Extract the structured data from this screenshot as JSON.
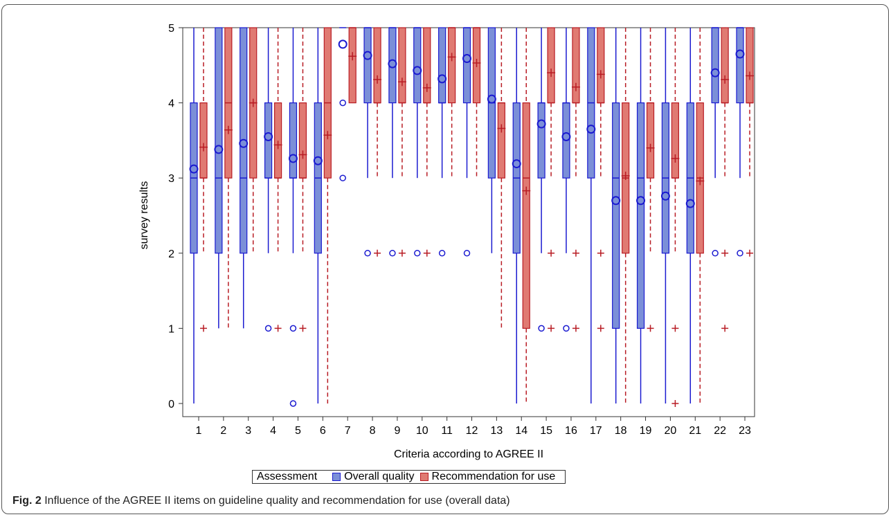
{
  "caption": {
    "label": "Fig. 2",
    "text": "Influence of the AGREE II items on guideline quality and recommendation for use (overall data)"
  },
  "chart_data": {
    "type": "box",
    "xlabel": "Criteria according to AGREE II",
    "ylabel": "survey results",
    "ylim": [
      0,
      5
    ],
    "yticks": [
      0,
      1,
      2,
      3,
      4,
      5
    ],
    "categories": [
      "1",
      "2",
      "3",
      "4",
      "5",
      "6",
      "7",
      "8",
      "9",
      "10",
      "11",
      "12",
      "13",
      "14",
      "15",
      "16",
      "17",
      "18",
      "19",
      "20",
      "21",
      "22",
      "23"
    ],
    "legend": {
      "title": "Assessment",
      "placement": "bottom",
      "entries": [
        "Overall quality",
        "Recommendation for use"
      ]
    },
    "colors": {
      "overall_fill": "#7b8fd8",
      "overall_line": "#1a1ad0",
      "rec_fill": "#e07a72",
      "rec_line": "#b81c24"
    },
    "series": [
      {
        "name": "Overall quality",
        "boxes": [
          {
            "min": 0,
            "q1": 2,
            "median": 3,
            "q3": 4,
            "max": 5,
            "mean": 3.12,
            "outliers": []
          },
          {
            "min": 1,
            "q1": 2,
            "median": 3,
            "q3": 5,
            "max": 5,
            "mean": 3.38,
            "outliers": []
          },
          {
            "min": 1,
            "q1": 2,
            "median": 3,
            "q3": 5,
            "max": 5,
            "mean": 3.46,
            "outliers": []
          },
          {
            "min": 2,
            "q1": 3,
            "median": 3,
            "q3": 4,
            "max": 5,
            "mean": 3.55,
            "outliers": [
              1
            ]
          },
          {
            "min": 2,
            "q1": 3,
            "median": 3,
            "q3": 4,
            "max": 5,
            "mean": 3.26,
            "outliers": [
              1,
              0
            ]
          },
          {
            "min": 0,
            "q1": 2,
            "median": 3,
            "q3": 4,
            "max": 5,
            "mean": 3.23,
            "outliers": []
          },
          {
            "min": 5,
            "q1": 5,
            "median": 5,
            "q3": 5,
            "max": 5,
            "mean": 4.78,
            "outliers": [
              4,
              3
            ]
          },
          {
            "min": 3,
            "q1": 4,
            "median": 5,
            "q3": 5,
            "max": 5,
            "mean": 4.63,
            "outliers": [
              2
            ]
          },
          {
            "min": 3,
            "q1": 4,
            "median": 5,
            "q3": 5,
            "max": 5,
            "mean": 4.52,
            "outliers": [
              2
            ]
          },
          {
            "min": 3,
            "q1": 4,
            "median": 5,
            "q3": 5,
            "max": 5,
            "mean": 4.43,
            "outliers": [
              2
            ]
          },
          {
            "min": 3,
            "q1": 4,
            "median": 4,
            "q3": 5,
            "max": 5,
            "mean": 4.32,
            "outliers": [
              2
            ]
          },
          {
            "min": 3,
            "q1": 4,
            "median": 5,
            "q3": 5,
            "max": 5,
            "mean": 4.59,
            "outliers": [
              2
            ]
          },
          {
            "min": 2,
            "q1": 3,
            "median": 4,
            "q3": 5,
            "max": 5,
            "mean": 4.05,
            "outliers": []
          },
          {
            "min": 0,
            "q1": 2,
            "median": 3,
            "q3": 4,
            "max": 5,
            "mean": 3.19,
            "outliers": []
          },
          {
            "min": 2,
            "q1": 3,
            "median": 4,
            "q3": 4,
            "max": 5,
            "mean": 3.72,
            "outliers": [
              1
            ]
          },
          {
            "min": 2,
            "q1": 3,
            "median": 4,
            "q3": 4,
            "max": 5,
            "mean": 3.55,
            "outliers": [
              1
            ]
          },
          {
            "min": 0,
            "q1": 3,
            "median": 4,
            "q3": 5,
            "max": 5,
            "mean": 3.65,
            "outliers": []
          },
          {
            "min": 0,
            "q1": 1,
            "median": 3,
            "q3": 4,
            "max": 5,
            "mean": 2.7,
            "outliers": []
          },
          {
            "min": 0,
            "q1": 1,
            "median": 3,
            "q3": 4,
            "max": 5,
            "mean": 2.7,
            "outliers": []
          },
          {
            "min": 0,
            "q1": 2,
            "median": 3,
            "q3": 4,
            "max": 5,
            "mean": 2.76,
            "outliers": []
          },
          {
            "min": 0,
            "q1": 2,
            "median": 3,
            "q3": 4,
            "max": 5,
            "mean": 2.66,
            "outliers": []
          },
          {
            "min": 3,
            "q1": 4,
            "median": 5,
            "q3": 5,
            "max": 5,
            "mean": 4.4,
            "outliers": [
              2
            ]
          },
          {
            "min": 3,
            "q1": 4,
            "median": 5,
            "q3": 5,
            "max": 5,
            "mean": 4.65,
            "outliers": [
              2
            ]
          }
        ]
      },
      {
        "name": "Recommendation for use",
        "boxes": [
          {
            "min": 2,
            "q1": 3,
            "median": 3,
            "q3": 4,
            "max": 5,
            "mean": 3.41,
            "outliers": [
              1
            ]
          },
          {
            "min": 1,
            "q1": 3,
            "median": 4,
            "q3": 5,
            "max": 5,
            "mean": 3.64,
            "outliers": []
          },
          {
            "min": 2,
            "q1": 3,
            "median": 4,
            "q3": 5,
            "max": 5,
            "mean": 4.0,
            "outliers": []
          },
          {
            "min": 2,
            "q1": 3,
            "median": 3,
            "q3": 4,
            "max": 5,
            "mean": 3.44,
            "outliers": [
              1
            ]
          },
          {
            "min": 2,
            "q1": 3,
            "median": 3,
            "q3": 4,
            "max": 5,
            "mean": 3.31,
            "outliers": [
              1
            ]
          },
          {
            "min": 0,
            "q1": 3,
            "median": 4,
            "q3": 5,
            "max": 5,
            "mean": 3.57,
            "outliers": []
          },
          {
            "min": 4,
            "q1": 4,
            "median": 5,
            "q3": 5,
            "max": 5,
            "mean": 4.62,
            "outliers": []
          },
          {
            "min": 3,
            "q1": 4,
            "median": 4,
            "q3": 5,
            "max": 5,
            "mean": 4.31,
            "outliers": [
              2
            ]
          },
          {
            "min": 3,
            "q1": 4,
            "median": 4,
            "q3": 5,
            "max": 5,
            "mean": 4.28,
            "outliers": [
              2
            ]
          },
          {
            "min": 3,
            "q1": 4,
            "median": 4,
            "q3": 5,
            "max": 5,
            "mean": 4.2,
            "outliers": [
              2
            ]
          },
          {
            "min": 3,
            "q1": 4,
            "median": 5,
            "q3": 5,
            "max": 5,
            "mean": 4.61,
            "outliers": []
          },
          {
            "min": 3,
            "q1": 4,
            "median": 5,
            "q3": 5,
            "max": 5,
            "mean": 4.53,
            "outliers": []
          },
          {
            "min": 1,
            "q1": 3,
            "median": 4,
            "q3": 4,
            "max": 5,
            "mean": 3.66,
            "outliers": []
          },
          {
            "min": 0,
            "q1": 1,
            "median": 3,
            "q3": 4,
            "max": 5,
            "mean": 2.83,
            "outliers": []
          },
          {
            "min": 3,
            "q1": 4,
            "median": 4,
            "q3": 5,
            "max": 5,
            "mean": 4.4,
            "outliers": [
              2,
              1
            ]
          },
          {
            "min": 3,
            "q1": 4,
            "median": 4,
            "q3": 5,
            "max": 5,
            "mean": 4.21,
            "outliers": [
              2,
              1
            ]
          },
          {
            "min": 3,
            "q1": 4,
            "median": 4,
            "q3": 5,
            "max": 5,
            "mean": 4.38,
            "outliers": [
              2,
              1
            ]
          },
          {
            "min": 0,
            "q1": 2,
            "median": 3,
            "q3": 4,
            "max": 5,
            "mean": 3.03,
            "outliers": []
          },
          {
            "min": 2,
            "q1": 3,
            "median": 4,
            "q3": 4,
            "max": 5,
            "mean": 3.4,
            "outliers": [
              1
            ]
          },
          {
            "min": 2,
            "q1": 3,
            "median": 3,
            "q3": 4,
            "max": 5,
            "mean": 3.26,
            "outliers": [
              1,
              0
            ]
          },
          {
            "min": 0,
            "q1": 2,
            "median": 3,
            "q3": 4,
            "max": 5,
            "mean": 2.96,
            "outliers": []
          },
          {
            "min": 3,
            "q1": 4,
            "median": 4,
            "q3": 5,
            "max": 5,
            "mean": 4.31,
            "outliers": [
              2,
              1
            ]
          },
          {
            "min": 3,
            "q1": 4,
            "median": 4,
            "q3": 5,
            "max": 5,
            "mean": 4.36,
            "outliers": [
              2
            ]
          }
        ]
      }
    ]
  }
}
